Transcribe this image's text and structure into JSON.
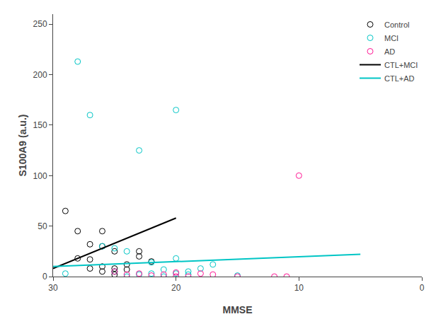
{
  "chart_data": {
    "type": "scatter",
    "xlabel": "MMSE",
    "ylabel": "S100A9 (a.u.)",
    "xlim": [
      30,
      0
    ],
    "ylim": [
      0,
      260
    ],
    "xticks": [
      30,
      20,
      10,
      0
    ],
    "yticks": [
      0,
      50,
      100,
      150,
      200,
      250
    ],
    "grid": false,
    "legend": "upper right",
    "series": [
      {
        "name": "Control",
        "type": "scatter",
        "marker": "circle-open",
        "color": "#000000",
        "x": [
          29,
          28,
          28,
          27,
          27,
          27,
          26,
          26,
          26,
          26,
          25,
          25,
          25,
          25,
          24,
          24,
          23,
          23,
          22
        ],
        "values": [
          65,
          45,
          18,
          17,
          32,
          8,
          30,
          45,
          10,
          5,
          25,
          8,
          5,
          2,
          12,
          7,
          25,
          20,
          15
        ]
      },
      {
        "name": "MCI",
        "type": "scatter",
        "marker": "circle-open",
        "color": "#00C5C5",
        "x": [
          29,
          28,
          27,
          26,
          25,
          25,
          24,
          24,
          23,
          23,
          22,
          22,
          21,
          21,
          20,
          20,
          20,
          19,
          19,
          18,
          17,
          15
        ],
        "values": [
          3,
          213,
          160,
          30,
          28,
          5,
          25,
          0,
          2,
          125,
          3,
          14,
          0,
          7,
          3,
          18,
          165,
          2,
          5,
          8,
          12,
          1
        ]
      },
      {
        "name": "AD",
        "type": "scatter",
        "marker": "circle-open",
        "color": "#FF1493",
        "x": [
          25,
          24,
          23,
          22,
          21,
          20,
          20,
          19,
          18,
          17,
          15,
          12,
          11,
          10
        ],
        "values": [
          5,
          2,
          3,
          1,
          2,
          4,
          0,
          0,
          3,
          2,
          0,
          0,
          0,
          100
        ]
      },
      {
        "name": "CTL+MCI",
        "type": "line",
        "color": "#000000",
        "x": [
          30,
          20
        ],
        "values": [
          8,
          58
        ]
      },
      {
        "name": "CTL+AD",
        "type": "line",
        "color": "#00C5C5",
        "x": [
          30,
          5
        ],
        "values": [
          10,
          22
        ]
      }
    ]
  }
}
